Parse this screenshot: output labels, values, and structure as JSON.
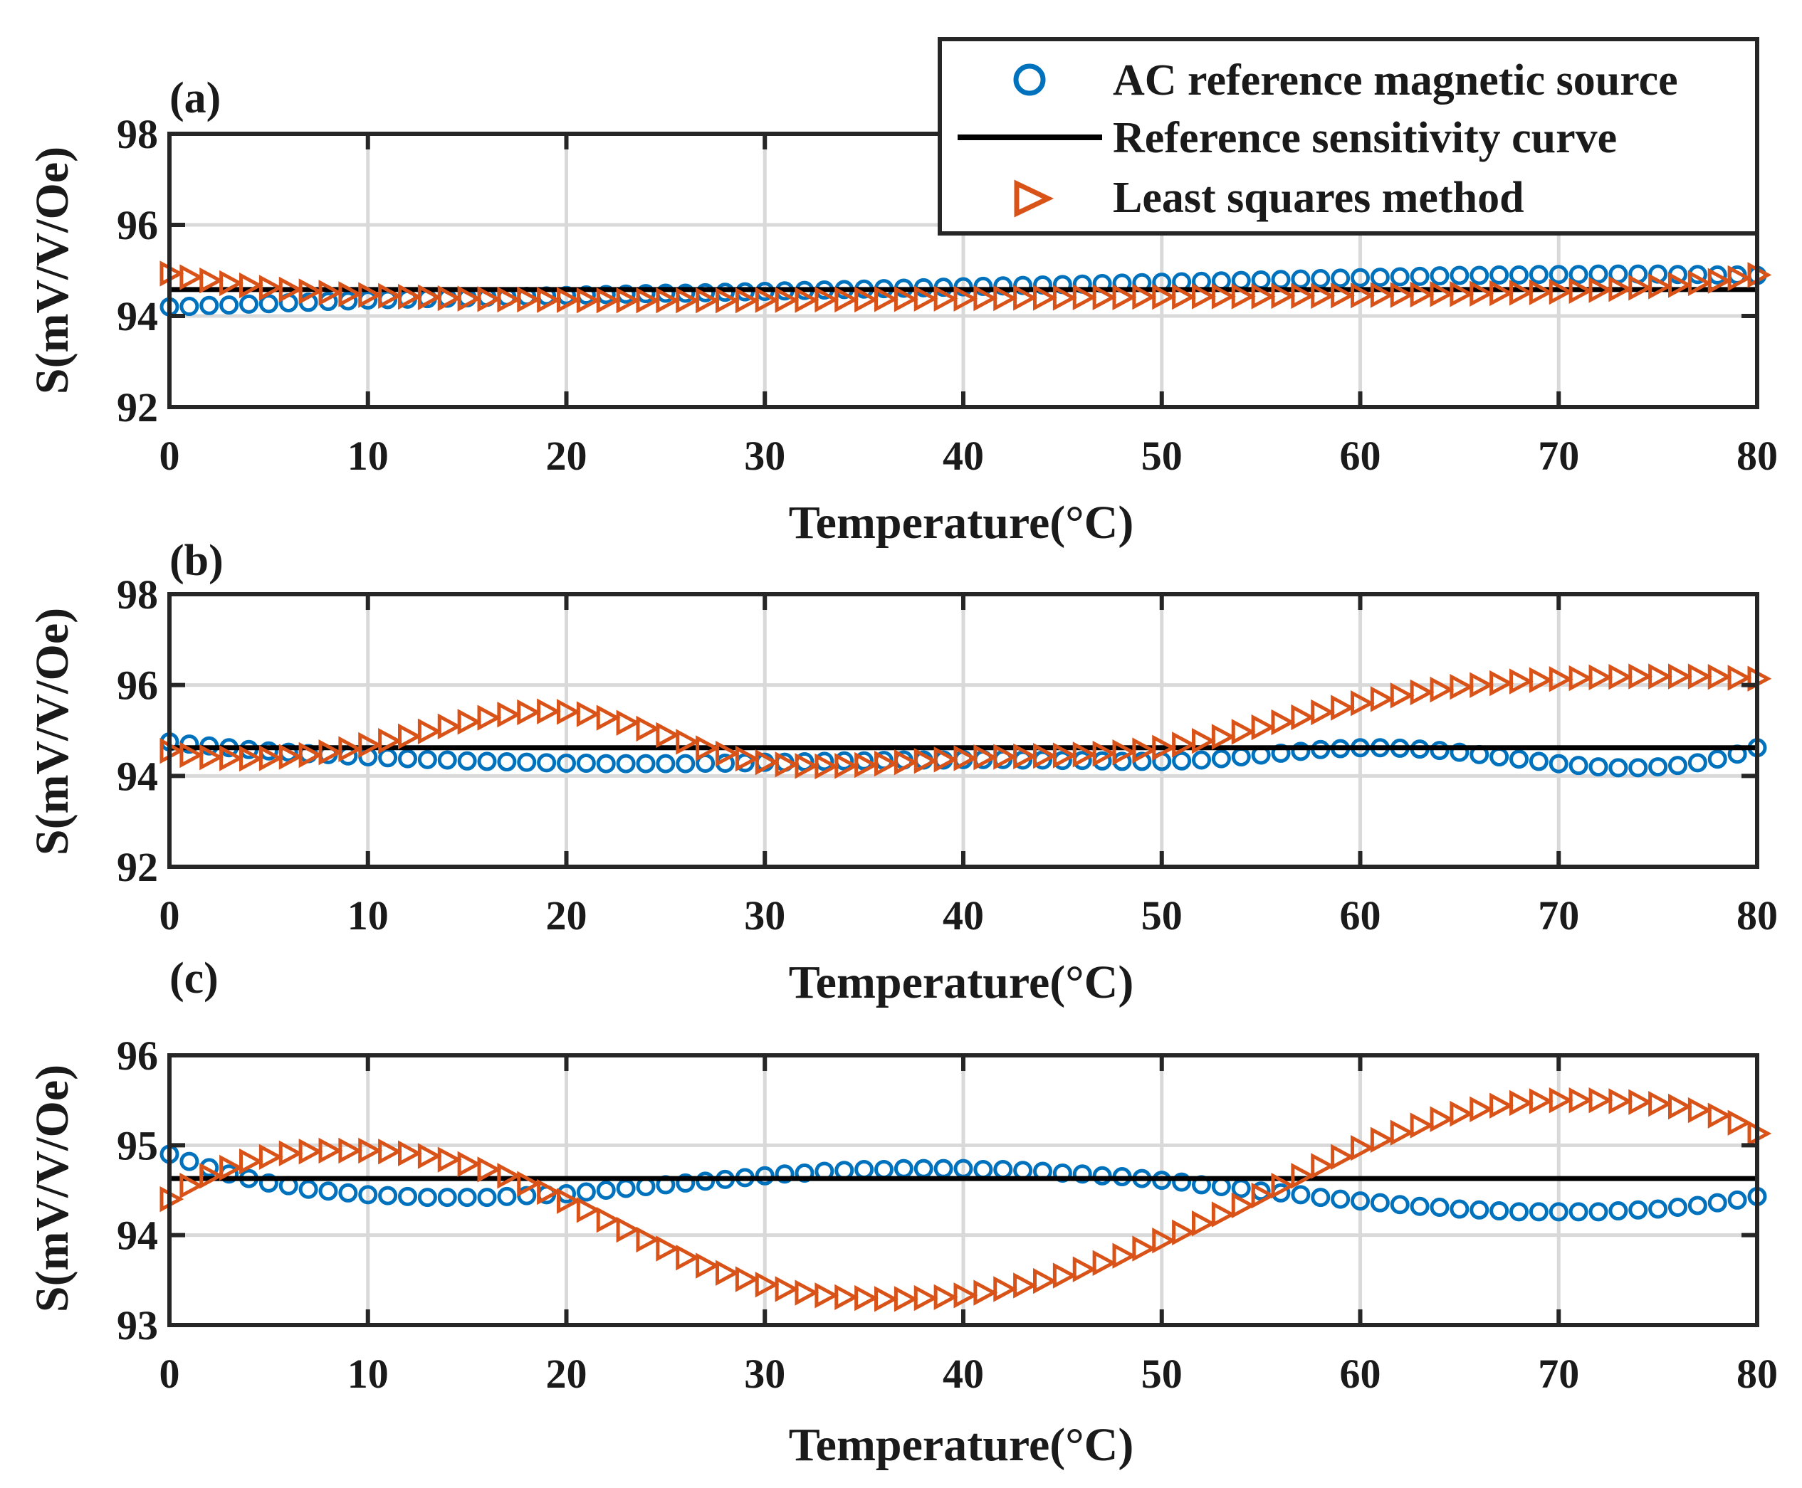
{
  "legend": {
    "entries": [
      {
        "label": "AC reference magnetic source",
        "marker": "circle",
        "color": "#0072BD"
      },
      {
        "label": "Reference sensitivity curve",
        "marker": "line",
        "color": "#000000"
      },
      {
        "label": "Least squares method",
        "marker": "triangle-right",
        "color": "#D95319"
      }
    ]
  },
  "colors": {
    "ac": "#0072BD",
    "ref": "#000000",
    "lsm": "#D95319",
    "grid": "#d9d9d9",
    "axis": "#262626"
  },
  "chart_data": [
    {
      "panel_label": "(a)",
      "type": "line",
      "xlabel": "Temperature(°C)",
      "ylabel": "S(mV/V/Oe)",
      "xlim": [
        0,
        80
      ],
      "ylim": [
        92,
        98
      ],
      "xticks": [
        0,
        10,
        20,
        30,
        40,
        50,
        60,
        70,
        80
      ],
      "yticks": [
        92,
        94,
        96,
        98
      ],
      "x": {
        "start": 0,
        "end": 80,
        "step": 1
      },
      "series": [
        {
          "name": "AC reference magnetic source",
          "key": "ac",
          "marker": "circle",
          "values": [
            94.2,
            94.21,
            94.23,
            94.24,
            94.26,
            94.27,
            94.29,
            94.3,
            94.32,
            94.33,
            94.35,
            94.36,
            94.37,
            94.38,
            94.39,
            94.4,
            94.41,
            94.42,
            94.43,
            94.44,
            94.45,
            94.46,
            94.47,
            94.48,
            94.49,
            94.5,
            94.5,
            94.51,
            94.52,
            94.53,
            94.54,
            94.55,
            94.56,
            94.57,
            94.58,
            94.59,
            94.6,
            94.61,
            94.62,
            94.63,
            94.64,
            94.65,
            94.66,
            94.67,
            94.68,
            94.69,
            94.7,
            94.71,
            94.72,
            94.73,
            94.74,
            94.75,
            94.76,
            94.77,
            94.78,
            94.79,
            94.8,
            94.81,
            94.82,
            94.83,
            94.84,
            94.85,
            94.86,
            94.87,
            94.88,
            94.89,
            94.89,
            94.9,
            94.9,
            94.91,
            94.91,
            94.91,
            94.92,
            94.92,
            94.92,
            94.92,
            94.91,
            94.91,
            94.9,
            94.9,
            94.89
          ]
        },
        {
          "name": "Reference sensitivity curve",
          "key": "ref",
          "marker": "line",
          "values": [
            94.58,
            94.58
          ]
        },
        {
          "name": "Least squares method",
          "key": "lsm",
          "marker": "triangle-right",
          "values": [
            94.93,
            94.85,
            94.78,
            94.72,
            94.67,
            94.62,
            94.58,
            94.54,
            94.51,
            94.48,
            94.46,
            94.44,
            94.42,
            94.41,
            94.39,
            94.38,
            94.37,
            94.36,
            94.36,
            94.35,
            94.35,
            94.34,
            94.34,
            94.34,
            94.34,
            94.34,
            94.34,
            94.34,
            94.34,
            94.34,
            94.35,
            94.35,
            94.35,
            94.36,
            94.36,
            94.36,
            94.37,
            94.37,
            94.38,
            94.38,
            94.38,
            94.39,
            94.39,
            94.4,
            94.4,
            94.4,
            94.41,
            94.41,
            94.41,
            94.42,
            94.42,
            94.42,
            94.43,
            94.43,
            94.43,
            94.43,
            94.44,
            94.44,
            94.44,
            94.45,
            94.45,
            94.46,
            94.46,
            94.47,
            94.48,
            94.48,
            94.49,
            94.5,
            94.51,
            94.52,
            94.53,
            94.55,
            94.57,
            94.59,
            94.62,
            94.65,
            94.68,
            94.72,
            94.77,
            94.83,
            94.9
          ]
        }
      ]
    },
    {
      "panel_label": "(b)",
      "type": "line",
      "xlabel": "Temperature(°C)",
      "ylabel": "S(mV/V/Oe)",
      "xlim": [
        0,
        80
      ],
      "ylim": [
        92,
        98
      ],
      "xticks": [
        0,
        10,
        20,
        30,
        40,
        50,
        60,
        70,
        80
      ],
      "yticks": [
        92,
        94,
        96,
        98
      ],
      "x": {
        "start": 0,
        "end": 80,
        "step": 1
      },
      "series": [
        {
          "name": "AC reference magnetic source",
          "key": "ac",
          "marker": "circle",
          "values": [
            94.75,
            94.7,
            94.66,
            94.62,
            94.58,
            94.55,
            94.52,
            94.49,
            94.47,
            94.44,
            94.42,
            94.4,
            94.38,
            94.36,
            94.35,
            94.33,
            94.32,
            94.31,
            94.3,
            94.29,
            94.28,
            94.28,
            94.27,
            94.27,
            94.27,
            94.27,
            94.27,
            94.28,
            94.28,
            94.29,
            94.3,
            94.3,
            94.31,
            94.32,
            94.33,
            94.33,
            94.34,
            94.35,
            94.35,
            94.35,
            94.36,
            94.36,
            94.36,
            94.35,
            94.35,
            94.34,
            94.34,
            94.33,
            94.32,
            94.32,
            94.32,
            94.33,
            94.35,
            94.38,
            94.42,
            94.46,
            94.5,
            94.54,
            94.58,
            94.6,
            94.62,
            94.62,
            94.61,
            94.59,
            94.56,
            94.52,
            94.47,
            94.42,
            94.37,
            94.32,
            94.27,
            94.23,
            94.2,
            94.18,
            94.18,
            94.2,
            94.23,
            94.29,
            94.37,
            94.48,
            94.62
          ]
        },
        {
          "name": "Reference sensitivity curve",
          "key": "ref",
          "marker": "line",
          "values": [
            94.62,
            94.62
          ]
        },
        {
          "name": "Least squares method",
          "key": "lsm",
          "marker": "triangle-right",
          "values": [
            94.55,
            94.46,
            94.41,
            94.39,
            94.38,
            94.39,
            94.42,
            94.46,
            94.52,
            94.59,
            94.68,
            94.77,
            94.87,
            94.98,
            95.09,
            95.19,
            95.28,
            95.35,
            95.4,
            95.42,
            95.41,
            95.36,
            95.28,
            95.17,
            95.04,
            94.9,
            94.75,
            94.61,
            94.49,
            94.38,
            94.3,
            94.25,
            94.22,
            94.21,
            94.22,
            94.24,
            94.27,
            94.3,
            94.33,
            94.36,
            94.39,
            94.41,
            94.42,
            94.43,
            94.44,
            94.45,
            94.47,
            94.49,
            94.52,
            94.56,
            94.62,
            94.69,
            94.77,
            94.86,
            94.97,
            95.07,
            95.18,
            95.29,
            95.4,
            95.5,
            95.6,
            95.69,
            95.77,
            95.84,
            95.9,
            95.96,
            96,
            96.04,
            96.08,
            96.11,
            96.13,
            96.15,
            96.17,
            96.18,
            96.19,
            96.19,
            96.19,
            96.19,
            96.18,
            96.16,
            96.14
          ]
        }
      ]
    },
    {
      "panel_label": "(c)",
      "type": "line",
      "xlabel": "Temperature(°C)",
      "ylabel": "S(mV/V/Oe)",
      "xlim": [
        0,
        80
      ],
      "ylim": [
        93,
        96
      ],
      "xticks": [
        0,
        10,
        20,
        30,
        40,
        50,
        60,
        70,
        80
      ],
      "yticks": [
        93,
        94,
        95,
        96
      ],
      "x": {
        "start": 0,
        "end": 80,
        "step": 1
      },
      "series": [
        {
          "name": "AC reference magnetic source",
          "key": "ac",
          "marker": "circle",
          "values": [
            94.9,
            94.82,
            94.75,
            94.68,
            94.63,
            94.58,
            94.55,
            94.51,
            94.49,
            94.47,
            94.45,
            94.44,
            94.43,
            94.42,
            94.42,
            94.42,
            94.42,
            94.43,
            94.44,
            94.45,
            94.46,
            94.48,
            94.5,
            94.52,
            94.54,
            94.56,
            94.58,
            94.6,
            94.62,
            94.64,
            94.66,
            94.68,
            94.69,
            94.71,
            94.72,
            94.73,
            94.73,
            94.74,
            94.74,
            94.74,
            94.74,
            94.73,
            94.73,
            94.72,
            94.71,
            94.69,
            94.68,
            94.66,
            94.65,
            94.63,
            94.61,
            94.59,
            94.56,
            94.54,
            94.52,
            94.49,
            94.47,
            94.45,
            94.42,
            94.4,
            94.38,
            94.36,
            94.34,
            94.32,
            94.31,
            94.29,
            94.28,
            94.27,
            94.26,
            94.26,
            94.26,
            94.26,
            94.26,
            94.27,
            94.28,
            94.29,
            94.31,
            94.33,
            94.36,
            94.39,
            94.43
          ]
        },
        {
          "name": "Reference sensitivity curve",
          "key": "ref",
          "marker": "line",
          "values": [
            94.63,
            94.63
          ]
        },
        {
          "name": "Least squares method",
          "key": "lsm",
          "marker": "triangle-right",
          "values": [
            94.4,
            94.55,
            94.66,
            94.75,
            94.82,
            94.87,
            94.91,
            94.93,
            94.94,
            94.94,
            94.94,
            94.93,
            94.91,
            94.88,
            94.84,
            94.79,
            94.73,
            94.66,
            94.57,
            94.48,
            94.38,
            94.28,
            94.17,
            94.06,
            93.95,
            93.85,
            93.75,
            93.66,
            93.58,
            93.51,
            93.45,
            93.4,
            93.36,
            93.33,
            93.31,
            93.3,
            93.29,
            93.29,
            93.3,
            93.31,
            93.33,
            93.36,
            93.4,
            93.44,
            93.49,
            93.55,
            93.62,
            93.69,
            93.77,
            93.85,
            93.94,
            94.03,
            94.13,
            94.23,
            94.33,
            94.44,
            94.55,
            94.66,
            94.77,
            94.87,
            94.97,
            95.06,
            95.14,
            95.22,
            95.29,
            95.35,
            95.4,
            95.44,
            95.47,
            95.49,
            95.5,
            95.5,
            95.5,
            95.49,
            95.48,
            95.46,
            95.43,
            95.39,
            95.33,
            95.25,
            95.13
          ]
        }
      ]
    }
  ]
}
